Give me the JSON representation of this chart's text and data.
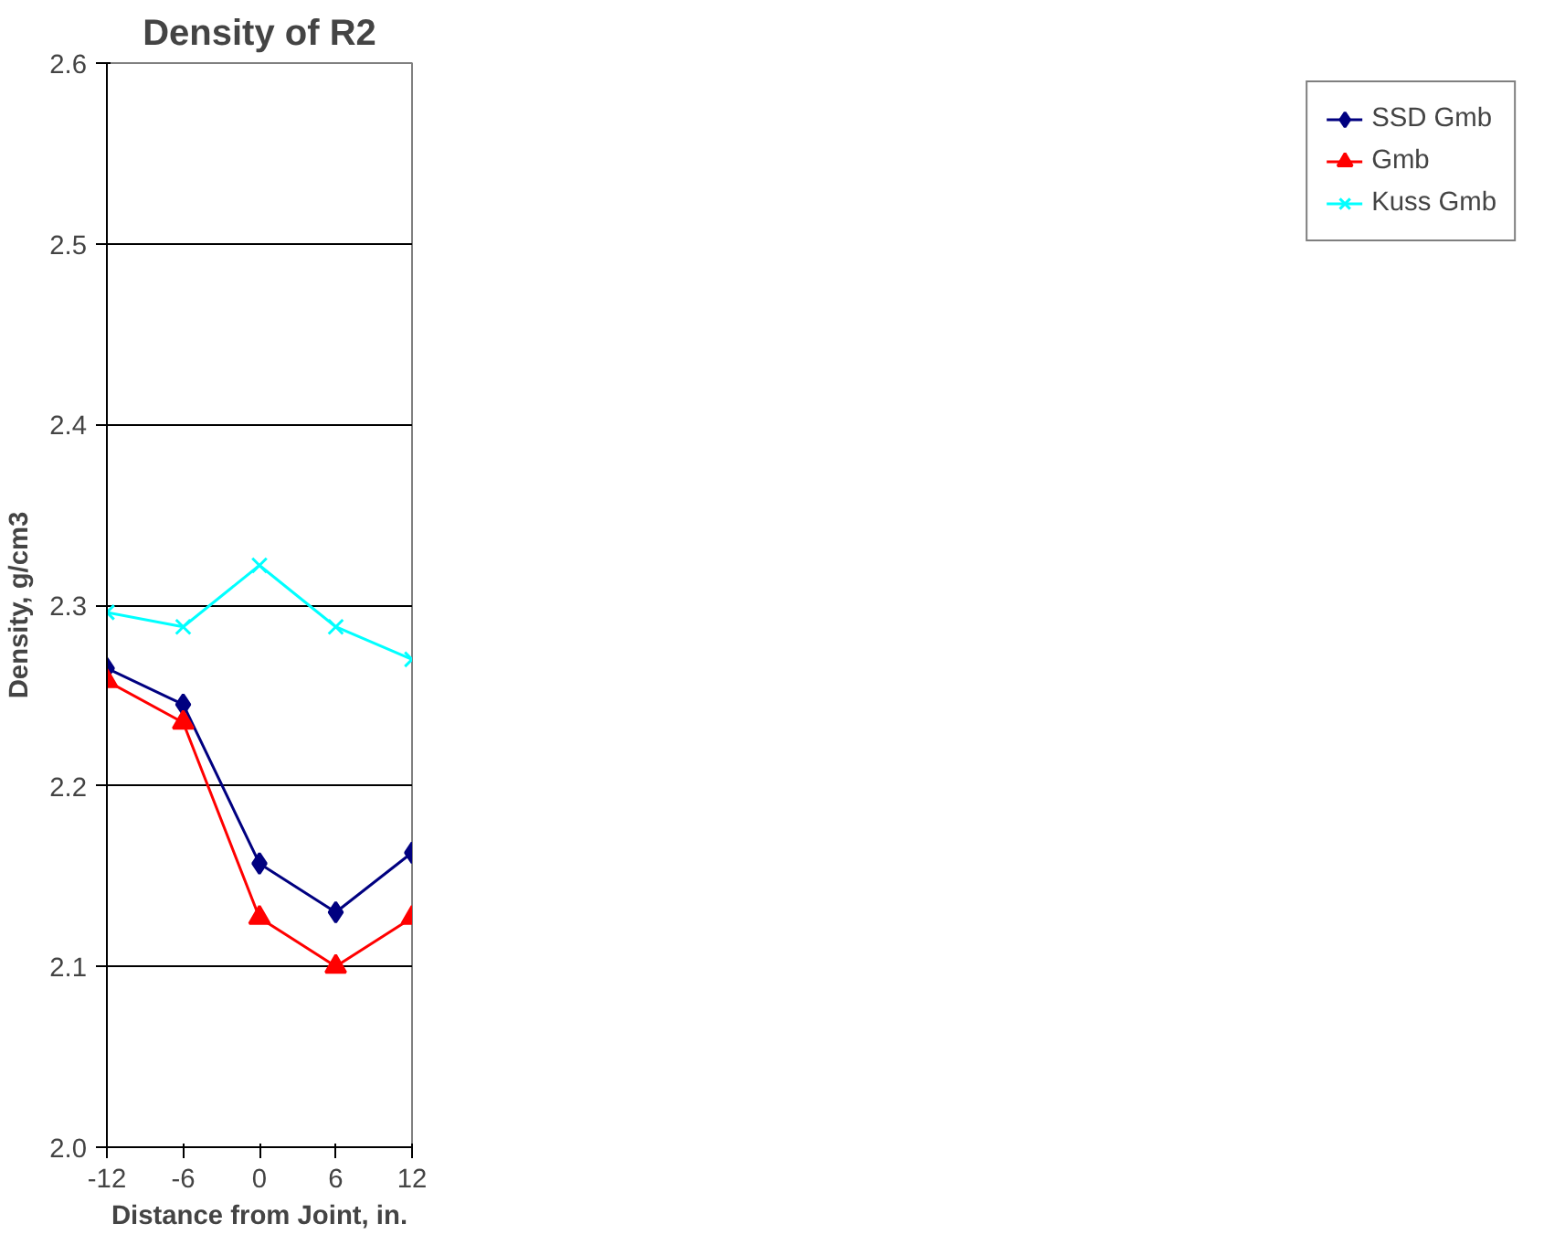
{
  "chart_data": {
    "type": "line",
    "title": "Density of R2",
    "xlabel": "Distance from Joint, in.",
    "ylabel": "Density, g/cm3",
    "x": [
      -12,
      -6,
      0,
      6,
      12
    ],
    "series": [
      {
        "name": "SSD Gmb",
        "color": "#000080",
        "marker": "diamond",
        "values": [
          2.265,
          2.245,
          2.157,
          2.13,
          2.163
        ]
      },
      {
        "name": "Gmb",
        "color": "#ff0000",
        "marker": "triangle",
        "values": [
          2.258,
          2.235,
          2.127,
          2.1,
          2.127
        ]
      },
      {
        "name": "Kuss Gmb",
        "color": "#00ffff",
        "marker": "cross",
        "values": [
          2.296,
          2.288,
          2.322,
          2.288,
          2.27
        ]
      }
    ],
    "xlim": [
      -12,
      12
    ],
    "xticks": [
      -12,
      -6,
      0,
      6,
      12
    ],
    "ylim": [
      2.0,
      2.6
    ],
    "yticks": [
      {
        "value": 2.0,
        "label": "2.0"
      },
      2.1,
      2.2,
      2.3,
      2.4,
      2.5,
      2.6
    ],
    "grid": "y",
    "legend": "right"
  }
}
